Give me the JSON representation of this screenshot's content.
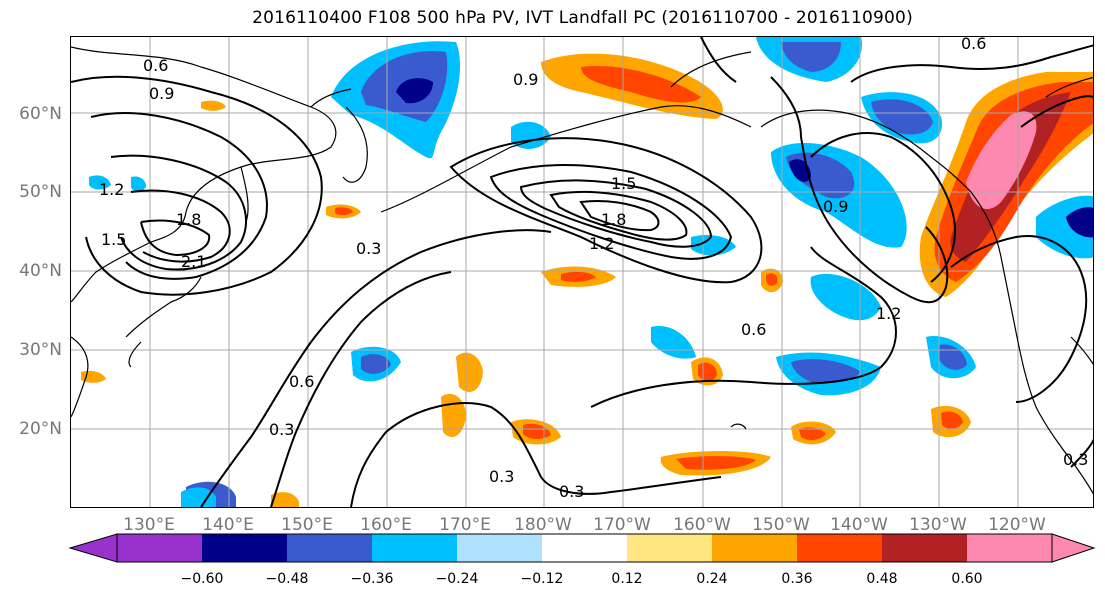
{
  "title": "2016110400 F108 500 hPa PV, IVT Landfall PC (2016110700 - 2016110900)",
  "map": {
    "lat_labels": [
      "60°N",
      "50°N",
      "40°N",
      "30°N",
      "20°N"
    ],
    "lon_labels": [
      "130°E",
      "140°E",
      "150°E",
      "160°E",
      "170°E",
      "180°W",
      "170°W",
      "160°W",
      "150°W",
      "140°W",
      "130°W",
      "120°W"
    ],
    "contour_labels": [
      "0.6",
      "0.9",
      "1.2",
      "1.5",
      "1.8",
      "2.1",
      "0.3",
      "0.6",
      "0.9",
      "1.2",
      "1.5",
      "1.8",
      "0.3",
      "0.3",
      "0.3",
      "0.6",
      "0.9",
      "1.2",
      "0.6",
      "0.3"
    ]
  },
  "colorbar": {
    "ticks": [
      "−0.60",
      "−0.48",
      "−0.36",
      "−0.24",
      "−0.12",
      "0.12",
      "0.24",
      "0.36",
      "0.48",
      "0.60"
    ],
    "colors": [
      "#9932cc",
      "#00008b",
      "#3a5bd0",
      "#00bfff",
      "#b0e0ff",
      "#ffffff",
      "#ffe680",
      "#ffa500",
      "#ff4500",
      "#b22222",
      "#ff88b0"
    ]
  }
}
